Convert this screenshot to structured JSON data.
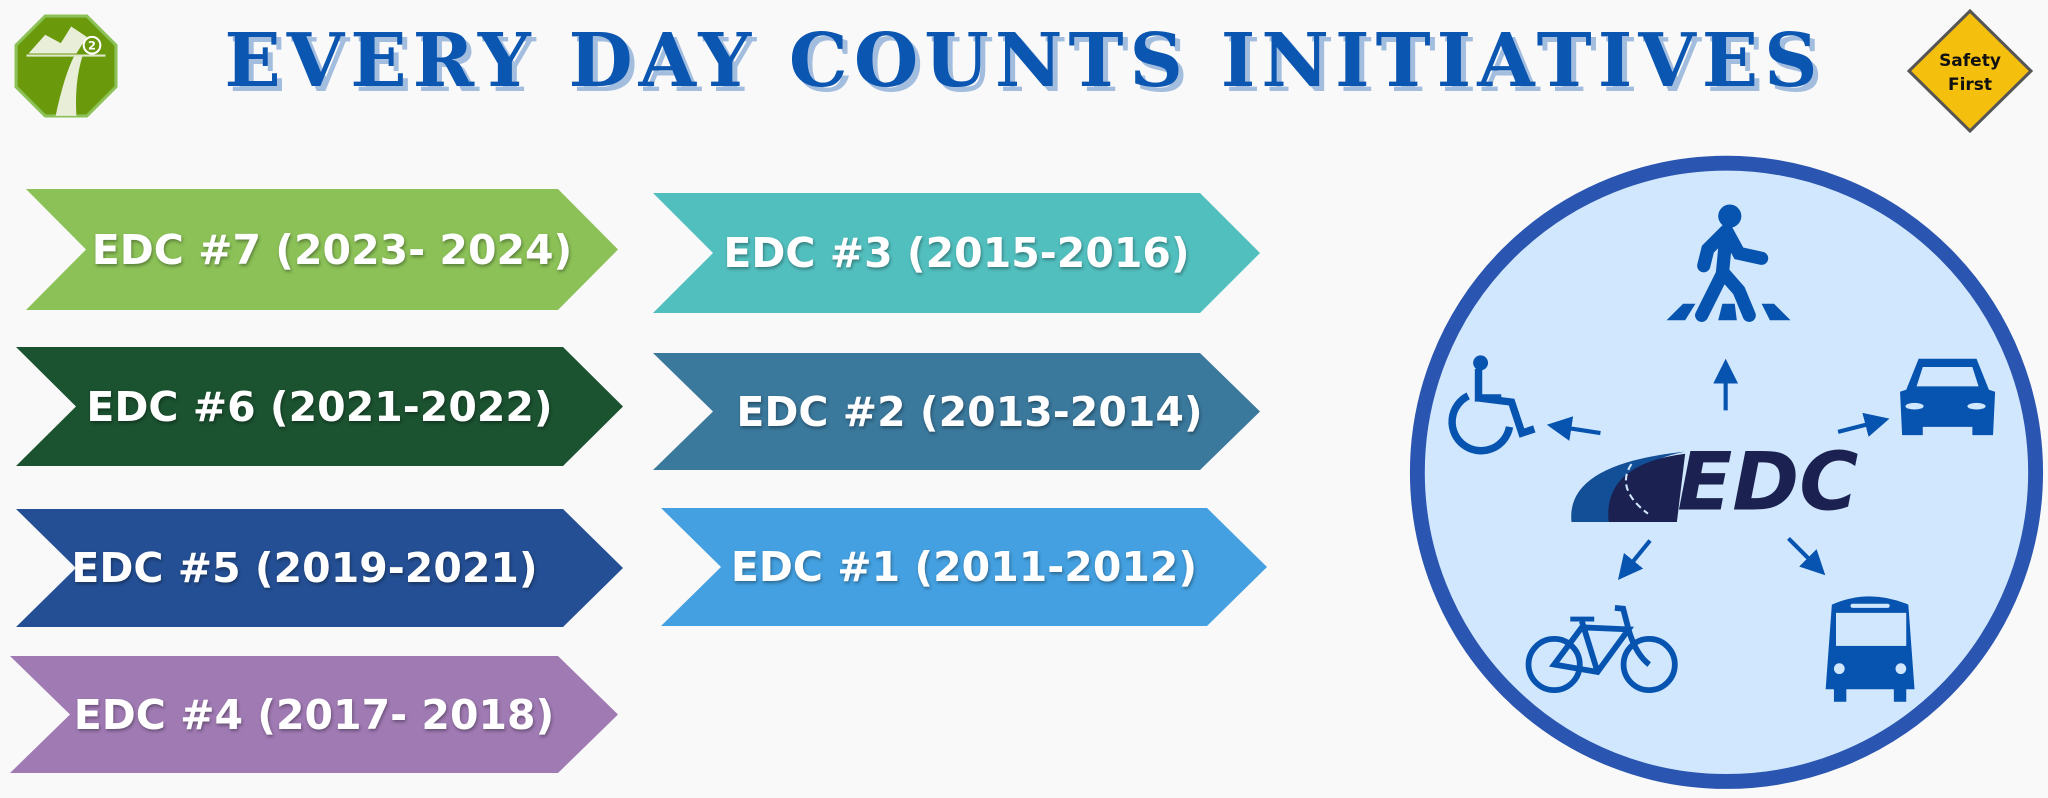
{
  "header": {
    "title": "EVERY DAY COUNTS INITIATIVES",
    "left_logo": "road-sign-2-icon",
    "right_badge": "Safety First"
  },
  "initiatives": [
    {
      "label": "EDC #7 (2023- 2024)",
      "color": "#8bc157"
    },
    {
      "label": "EDC #3 (2015-2016)",
      "color": "#52bfbf"
    },
    {
      "label": "EDC #6 (2021-2022)",
      "color": "#1b5230"
    },
    {
      "label": "EDC #2 (2013-2014)",
      "color": "#3a789c"
    },
    {
      "label": "EDC #5 (2019-2021)",
      "color": "#244f94"
    },
    {
      "label": "EDC #1 (2011-2012)",
      "color": "#44a0e0"
    },
    {
      "label": "EDC #4 (2017- 2018)",
      "color": "#a07ab3"
    }
  ],
  "diagram": {
    "center_logo": "EDC",
    "modes": [
      "pedestrian-icon",
      "wheelchair-icon",
      "car-icon",
      "bicycle-icon",
      "bus-icon"
    ],
    "accent": "#0653b0",
    "border": "#2a55b0",
    "fill": "#d1e7fd"
  }
}
